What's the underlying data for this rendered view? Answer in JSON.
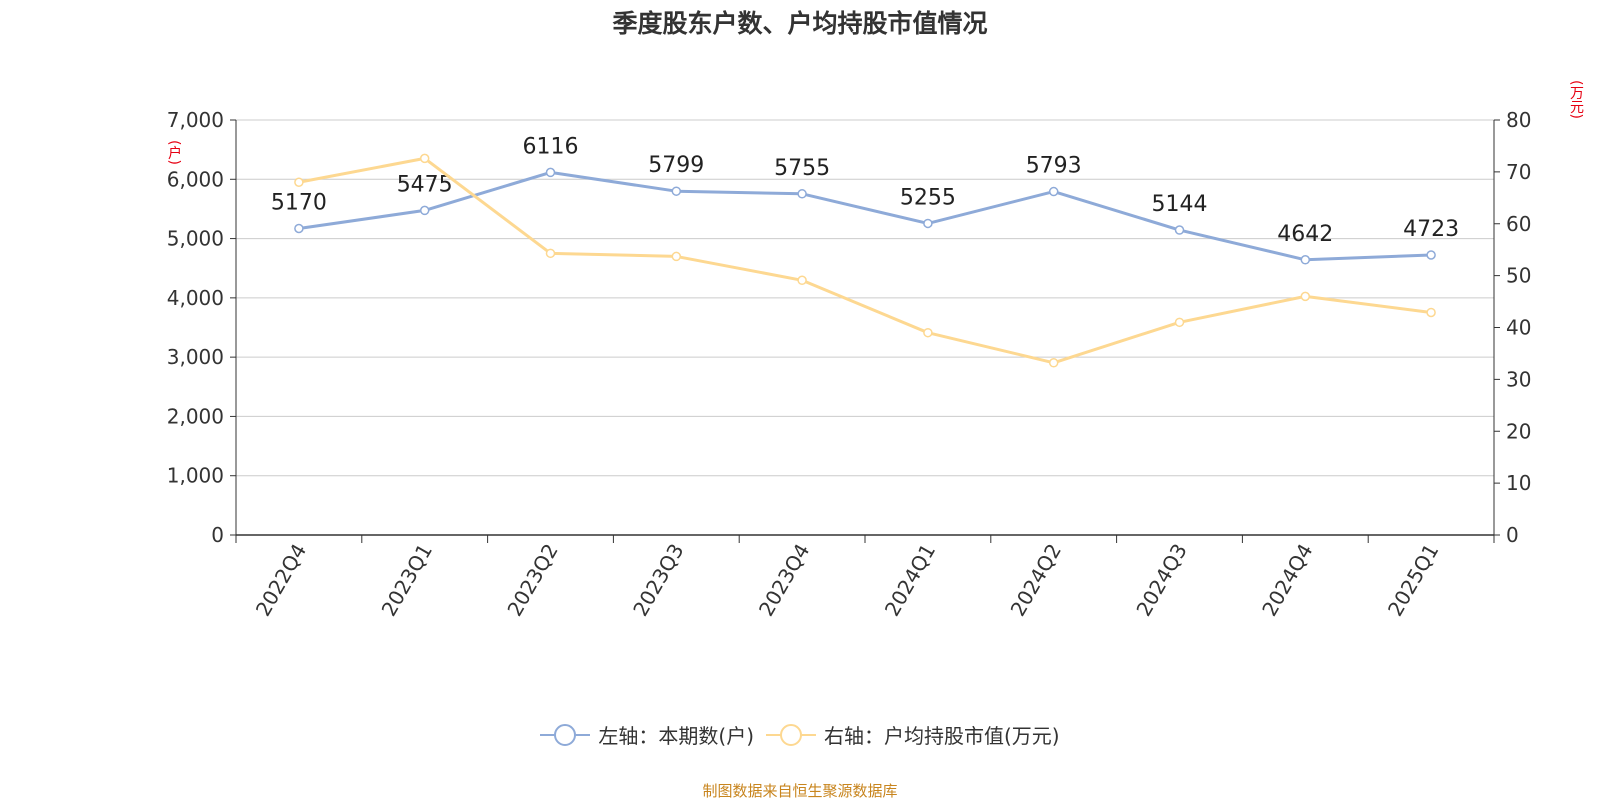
{
  "title": "季度股东户数、户均持股市值情况",
  "source": "制图数据来自恒生聚源数据库",
  "colors": {
    "left": "#8eaad8",
    "right": "#fdd891",
    "unit": "#e60012",
    "grid": "#cccccc",
    "axis": "#333333"
  },
  "legend": [
    {
      "label": "左轴：本期数(户)",
      "series": "left"
    },
    {
      "label": "右轴：户均持股市值(万元)",
      "series": "right"
    }
  ],
  "chart_data": {
    "type": "line",
    "categories": [
      "2022Q4",
      "2023Q1",
      "2023Q2",
      "2023Q3",
      "2023Q4",
      "2024Q1",
      "2024Q2",
      "2024Q3",
      "2024Q4",
      "2025Q1"
    ],
    "left_axis": {
      "unit": "(户)",
      "ylim": [
        0,
        7000
      ],
      "ticks": [
        "0",
        "1,000",
        "2,000",
        "3,000",
        "4,000",
        "5,000",
        "6,000",
        "7,000"
      ]
    },
    "right_axis": {
      "unit": "(万元)",
      "ylim": [
        0,
        80
      ],
      "ticks": [
        "0",
        "10",
        "20",
        "30",
        "40",
        "50",
        "60",
        "70",
        "80"
      ]
    },
    "series": [
      {
        "name": "左轴：本期数(户)",
        "axis": "left",
        "values": [
          5170,
          5475,
          6116,
          5799,
          5755,
          5255,
          5793,
          5144,
          4642,
          4723
        ],
        "labels_shown": true
      },
      {
        "name": "右轴：户均持股市值(万元)",
        "axis": "right",
        "values": [
          68.0,
          72.6,
          54.3,
          53.7,
          49.1,
          39.0,
          33.2,
          41.0,
          46.0,
          42.9
        ],
        "labels_shown": false
      }
    ],
    "grid": true,
    "legend_position": "bottom"
  }
}
